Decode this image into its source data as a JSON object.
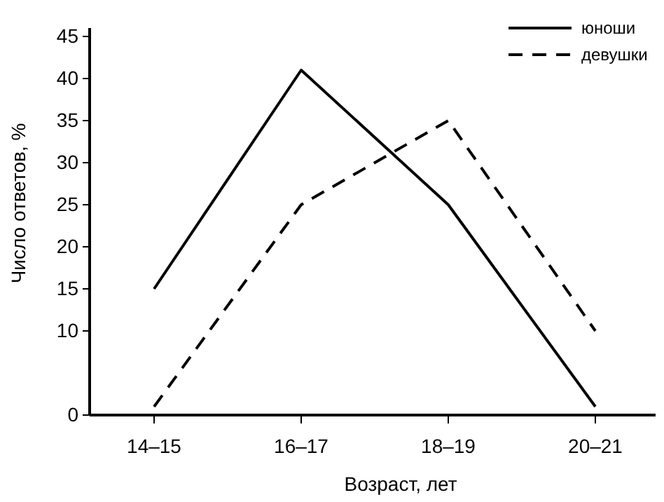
{
  "chart_data": {
    "type": "line",
    "xlabel": "Возраст, лет",
    "ylabel": "Число ответов, %",
    "categories": [
      "14–15",
      "16–17",
      "18–19",
      "20–21"
    ],
    "series": [
      {
        "name": "юноши",
        "color": "#000000",
        "line_style": "solid",
        "values": [
          15,
          41,
          25,
          1
        ]
      },
      {
        "name": "девушки",
        "color": "#000000",
        "line_style": "dashed",
        "values": [
          1,
          25,
          35,
          10
        ]
      }
    ],
    "ylim": [
      0,
      46
    ],
    "yticks": [
      0,
      10,
      15,
      20,
      25,
      30,
      35,
      40,
      45
    ],
    "legend": "top right",
    "grid": false,
    "marker": "none"
  }
}
